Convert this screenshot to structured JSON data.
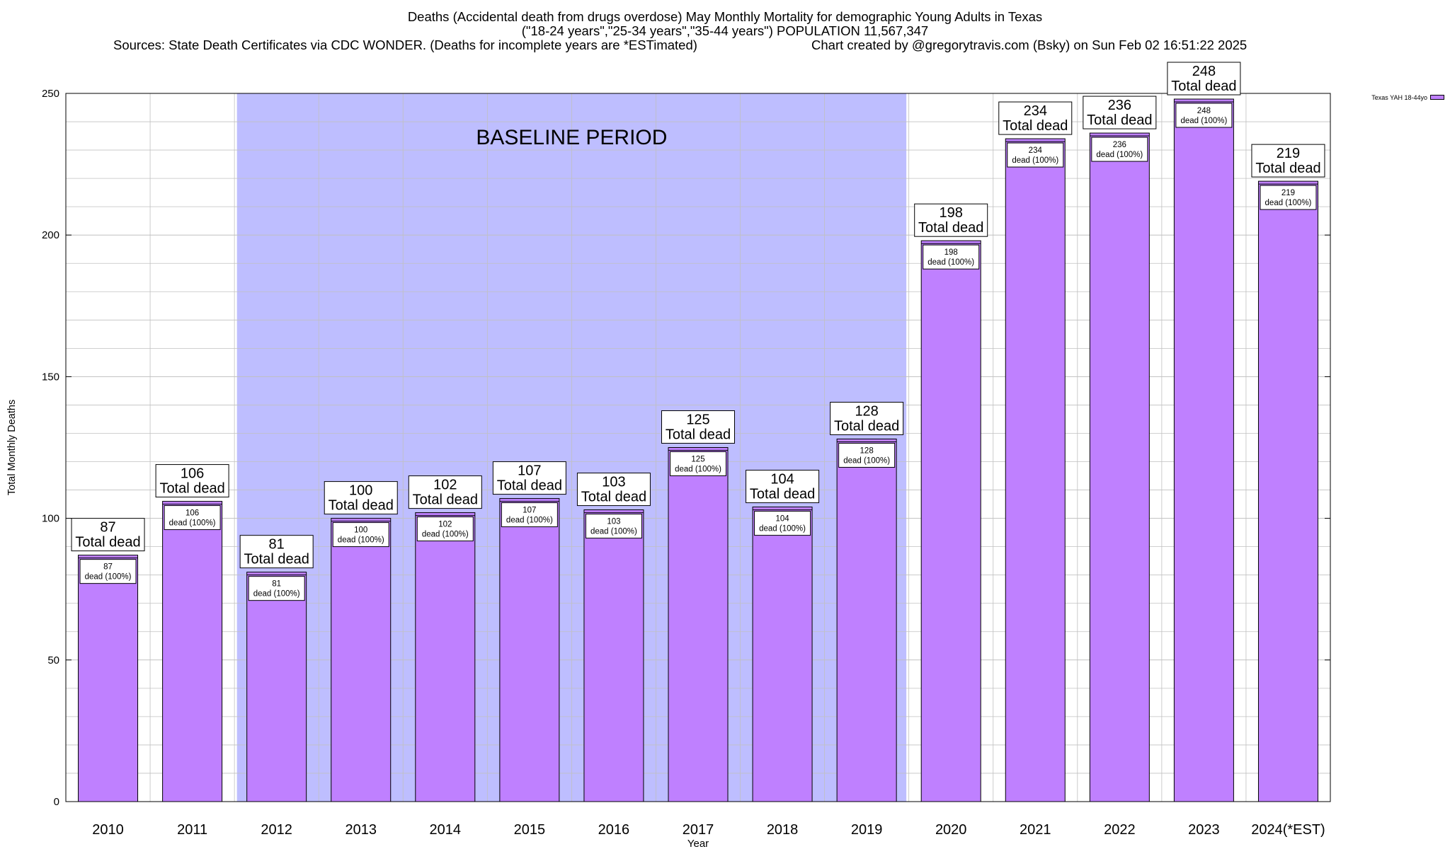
{
  "header": {
    "line1": "Deaths (Accidental death from drugs overdose) May Monthly Mortality for demographic Young Adults in Texas",
    "line2": "(\"18-24 years\",\"25-34 years\",\"35-44 years\") POPULATION 11,567,347",
    "line3_left": "Sources: State Death Certificates via CDC WONDER. (Deaths for incomplete years are *ESTimated)",
    "line3_right": "Chart created by @gregorytravis.com (Bsky) on Sun Feb 02 16:51:22 2025"
  },
  "colors": {
    "bar_fill": "#bf80ff",
    "baseline_shade": "#bebeff",
    "grid": "#c0c0c0",
    "axis": "#000000"
  },
  "chart_data": {
    "type": "bar",
    "title": "Deaths (Accidental death from drugs overdose) May Monthly Mortality for demographic Young Adults in Texas",
    "xlabel": "Year",
    "ylabel": "Total Monthly Deaths",
    "ylim": [
      0,
      250
    ],
    "y_ticks": [
      0,
      50,
      100,
      150,
      200,
      250
    ],
    "grid": true,
    "legend_placement": "top-right",
    "categories": [
      "2010",
      "2011",
      "2012",
      "2013",
      "2014",
      "2015",
      "2016",
      "2017",
      "2018",
      "2019",
      "2020",
      "2021",
      "2022",
      "2023",
      "2024(*EST)"
    ],
    "series": [
      {
        "name": "Texas YAH 18-44yo",
        "values": [
          87,
          106,
          81,
          100,
          102,
          107,
          103,
          125,
          104,
          128,
          198,
          234,
          236,
          248,
          219
        ]
      }
    ],
    "total_label_suffix": "Total dead",
    "inner_label_suffix": "dead (100%)",
    "baseline_period": {
      "label": "BASELINE PERIOD",
      "from_category": "2012",
      "to_category": "2019"
    }
  }
}
